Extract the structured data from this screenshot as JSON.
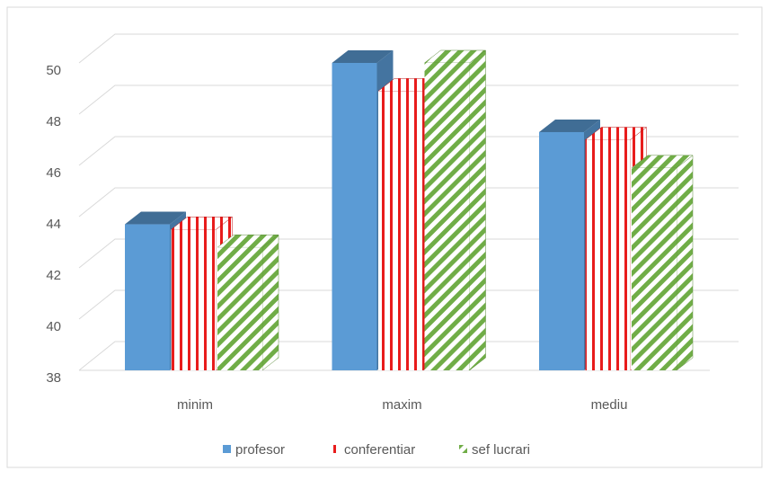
{
  "chart_data": {
    "type": "bar3d",
    "categories": [
      "minim",
      "maxim",
      "mediu"
    ],
    "series": [
      {
        "name": "profesor",
        "color": "#5b9bd5",
        "values": [
          43.7,
          50,
          47.3
        ]
      },
      {
        "name": "conferentiar",
        "color": "#e81c1c",
        "values": [
          43.5,
          48.9,
          47
        ]
      },
      {
        "name": "sef lucrari",
        "color": "#70ad47",
        "values": [
          42.8,
          50,
          45.9
        ]
      }
    ],
    "ylim": [
      38,
      50
    ],
    "yticks": [
      38,
      40,
      42,
      44,
      46,
      48,
      50
    ],
    "grid": true,
    "legend": "bottom"
  }
}
